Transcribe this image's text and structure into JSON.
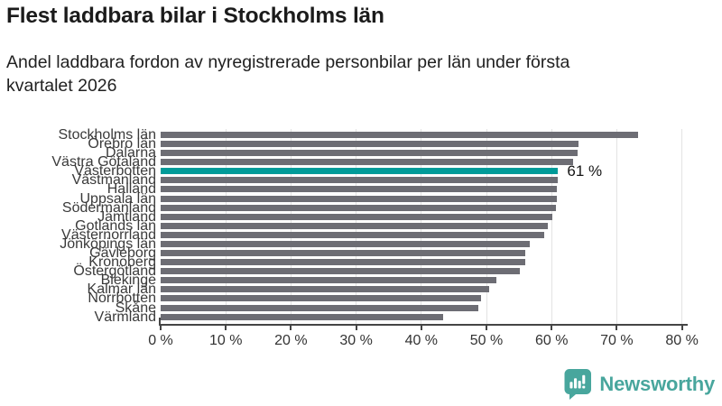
{
  "header": {
    "title": "Flest laddbara bilar i Stockholms län",
    "subtitle_line1": "Andel laddbara fordon av nyregistrerade personbilar per län under första",
    "subtitle_line2": "kvartalet 2026"
  },
  "chart_data": {
    "type": "bar",
    "orientation": "horizontal",
    "title": "Flest laddbara bilar i Stockholms län",
    "subtitle": "Andel laddbara fordon av nyregistrerade personbilar per län under första kvartalet 2026",
    "categories": [
      "Stockholms län",
      "Örebro län",
      "Dalarna",
      "Västra Götaland",
      "Västerbotten",
      "Västmanland",
      "Halland",
      "Uppsala län",
      "Södermanland",
      "Jämtland",
      "Gotlands län",
      "Västernorrland",
      "Jönköpings län",
      "Gävleborg",
      "Kronoberg",
      "Östergötland",
      "Blekinge",
      "Kalmar län",
      "Norrbotten",
      "Skåne",
      "Värmland"
    ],
    "values": [
      73.2,
      64.1,
      64.0,
      63.3,
      61.0,
      60.9,
      60.8,
      60.8,
      60.7,
      60.1,
      59.4,
      58.8,
      56.6,
      56.0,
      55.9,
      55.1,
      51.5,
      50.4,
      49.2,
      48.7,
      43.4
    ],
    "unit": "%",
    "highlight_category": "Västerbotten",
    "highlight_value_label": "61 %",
    "xlim": [
      0,
      80
    ],
    "x_ticks": [
      0,
      10,
      20,
      30,
      40,
      50,
      60,
      70,
      80
    ],
    "x_tick_labels": [
      "0 %",
      "10 %",
      "20 %",
      "30 %",
      "40 %",
      "50 %",
      "60 %",
      "70 %",
      "80 %"
    ],
    "grid": true,
    "legend": false,
    "bar_color": "#6d6d74",
    "highlight_color": "#009b99",
    "grid_color": "#e3e3e3",
    "axis_color": "#454545"
  },
  "footer": {
    "brand": "Newsworthy",
    "logo_color": "#48a69d",
    "logo_icon": "bar-chart-speech-bubble-icon"
  }
}
